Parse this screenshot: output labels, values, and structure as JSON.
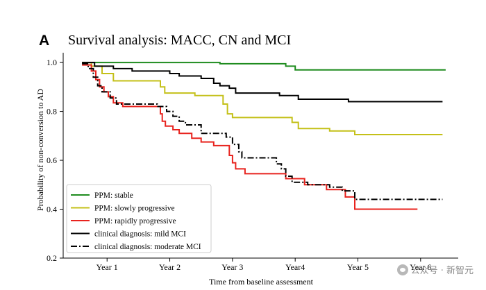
{
  "panel_label": "A",
  "watermark": "公众号 · 新智元",
  "colors": {
    "stable": "#1e8c1e",
    "slowly": "#c4c019",
    "rapidly": "#e8231e",
    "mild": "#000000",
    "moderate": "#000000"
  },
  "chart_data": {
    "type": "line",
    "title": "Survival analysis: MACC, CN and MCI",
    "xlabel": "Time from baseline assessment",
    "ylabel": "Probability of non-conversion to AD",
    "xlim": [
      0.3,
      6.6
    ],
    "ylim": [
      0.2,
      1.04
    ],
    "x_ticks": [
      1,
      2,
      3,
      4,
      5,
      6
    ],
    "x_tick_labels": [
      "Year 1",
      "Year 2",
      "Year 3",
      "Year4",
      "Year 5",
      "Year 6"
    ],
    "y_ticks": [
      0.2,
      0.4,
      0.6,
      0.8,
      1.0
    ],
    "y_tick_labels": [
      "0.2",
      "0.4",
      "0.6",
      "0.8",
      "1.0"
    ],
    "legend_position": "lower-left",
    "series": [
      {
        "name": "PPM: stable",
        "style": "solid",
        "color_key": "stable",
        "points": [
          [
            0.6,
            1.0
          ],
          [
            2.8,
            1.0
          ],
          [
            2.8,
            0.995
          ],
          [
            3.85,
            0.995
          ],
          [
            3.85,
            0.985
          ],
          [
            4.0,
            0.985
          ],
          [
            4.0,
            0.97
          ],
          [
            6.4,
            0.97
          ]
        ]
      },
      {
        "name": "PPM: slowly progressive",
        "style": "solid",
        "color_key": "slowly",
        "points": [
          [
            0.6,
            1.0
          ],
          [
            0.75,
            1.0
          ],
          [
            0.75,
            0.985
          ],
          [
            0.92,
            0.985
          ],
          [
            0.92,
            0.955
          ],
          [
            1.1,
            0.955
          ],
          [
            1.1,
            0.925
          ],
          [
            1.85,
            0.925
          ],
          [
            1.85,
            0.9
          ],
          [
            1.92,
            0.9
          ],
          [
            1.92,
            0.875
          ],
          [
            2.4,
            0.875
          ],
          [
            2.4,
            0.865
          ],
          [
            2.85,
            0.865
          ],
          [
            2.85,
            0.83
          ],
          [
            2.92,
            0.83
          ],
          [
            2.92,
            0.79
          ],
          [
            3.0,
            0.79
          ],
          [
            3.0,
            0.775
          ],
          [
            3.95,
            0.775
          ],
          [
            3.95,
            0.755
          ],
          [
            4.05,
            0.755
          ],
          [
            4.05,
            0.73
          ],
          [
            4.55,
            0.73
          ],
          [
            4.55,
            0.72
          ],
          [
            4.95,
            0.72
          ],
          [
            4.95,
            0.705
          ],
          [
            6.35,
            0.705
          ]
        ]
      },
      {
        "name": "PPM: rapidly progressive",
        "style": "solid",
        "color_key": "rapidly",
        "points": [
          [
            0.6,
            0.99
          ],
          [
            0.75,
            0.99
          ],
          [
            0.75,
            0.965
          ],
          [
            0.82,
            0.965
          ],
          [
            0.82,
            0.93
          ],
          [
            0.88,
            0.93
          ],
          [
            0.88,
            0.9
          ],
          [
            0.95,
            0.9
          ],
          [
            0.95,
            0.88
          ],
          [
            1.02,
            0.88
          ],
          [
            1.02,
            0.86
          ],
          [
            1.1,
            0.86
          ],
          [
            1.1,
            0.835
          ],
          [
            1.25,
            0.835
          ],
          [
            1.25,
            0.82
          ],
          [
            1.85,
            0.82
          ],
          [
            1.85,
            0.79
          ],
          [
            1.88,
            0.79
          ],
          [
            1.88,
            0.76
          ],
          [
            1.93,
            0.76
          ],
          [
            1.93,
            0.74
          ],
          [
            2.05,
            0.74
          ],
          [
            2.05,
            0.725
          ],
          [
            2.15,
            0.725
          ],
          [
            2.15,
            0.71
          ],
          [
            2.35,
            0.71
          ],
          [
            2.35,
            0.69
          ],
          [
            2.5,
            0.69
          ],
          [
            2.5,
            0.675
          ],
          [
            2.7,
            0.675
          ],
          [
            2.7,
            0.66
          ],
          [
            2.95,
            0.66
          ],
          [
            2.95,
            0.62
          ],
          [
            3.0,
            0.62
          ],
          [
            3.0,
            0.59
          ],
          [
            3.05,
            0.59
          ],
          [
            3.05,
            0.565
          ],
          [
            3.2,
            0.565
          ],
          [
            3.2,
            0.545
          ],
          [
            3.85,
            0.545
          ],
          [
            3.85,
            0.525
          ],
          [
            4.15,
            0.525
          ],
          [
            4.15,
            0.5
          ],
          [
            4.5,
            0.5
          ],
          [
            4.5,
            0.48
          ],
          [
            4.8,
            0.48
          ],
          [
            4.8,
            0.45
          ],
          [
            4.95,
            0.45
          ],
          [
            4.95,
            0.4
          ],
          [
            5.95,
            0.4
          ]
        ]
      },
      {
        "name": "clinical diagnosis: mild MCI",
        "style": "solid",
        "color_key": "mild",
        "points": [
          [
            0.6,
            1.0
          ],
          [
            0.8,
            1.0
          ],
          [
            0.8,
            0.985
          ],
          [
            1.1,
            0.985
          ],
          [
            1.1,
            0.975
          ],
          [
            1.4,
            0.975
          ],
          [
            1.4,
            0.965
          ],
          [
            2.0,
            0.965
          ],
          [
            2.0,
            0.955
          ],
          [
            2.15,
            0.955
          ],
          [
            2.15,
            0.945
          ],
          [
            2.5,
            0.945
          ],
          [
            2.5,
            0.935
          ],
          [
            2.7,
            0.935
          ],
          [
            2.7,
            0.915
          ],
          [
            2.8,
            0.915
          ],
          [
            2.8,
            0.905
          ],
          [
            2.95,
            0.905
          ],
          [
            2.95,
            0.895
          ],
          [
            3.05,
            0.895
          ],
          [
            3.05,
            0.875
          ],
          [
            3.75,
            0.875
          ],
          [
            3.75,
            0.865
          ],
          [
            4.05,
            0.865
          ],
          [
            4.05,
            0.85
          ],
          [
            4.85,
            0.85
          ],
          [
            4.85,
            0.84
          ],
          [
            6.35,
            0.84
          ]
        ]
      },
      {
        "name": "clinical diagnosis: moderate MCI",
        "style": "dashdot",
        "color_key": "moderate",
        "points": [
          [
            0.6,
            0.995
          ],
          [
            0.7,
            0.995
          ],
          [
            0.7,
            0.975
          ],
          [
            0.78,
            0.975
          ],
          [
            0.78,
            0.94
          ],
          [
            0.85,
            0.94
          ],
          [
            0.85,
            0.905
          ],
          [
            0.92,
            0.905
          ],
          [
            0.92,
            0.88
          ],
          [
            1.05,
            0.88
          ],
          [
            1.05,
            0.855
          ],
          [
            1.15,
            0.855
          ],
          [
            1.15,
            0.83
          ],
          [
            1.8,
            0.83
          ],
          [
            1.8,
            0.82
          ],
          [
            1.95,
            0.82
          ],
          [
            1.95,
            0.8
          ],
          [
            2.05,
            0.8
          ],
          [
            2.05,
            0.78
          ],
          [
            2.15,
            0.78
          ],
          [
            2.15,
            0.76
          ],
          [
            2.25,
            0.76
          ],
          [
            2.25,
            0.745
          ],
          [
            2.5,
            0.745
          ],
          [
            2.5,
            0.71
          ],
          [
            2.9,
            0.71
          ],
          [
            2.9,
            0.695
          ],
          [
            3.0,
            0.695
          ],
          [
            3.0,
            0.665
          ],
          [
            3.1,
            0.665
          ],
          [
            3.1,
            0.635
          ],
          [
            3.15,
            0.635
          ],
          [
            3.15,
            0.61
          ],
          [
            3.7,
            0.61
          ],
          [
            3.7,
            0.585
          ],
          [
            3.78,
            0.585
          ],
          [
            3.78,
            0.565
          ],
          [
            3.85,
            0.565
          ],
          [
            3.85,
            0.535
          ],
          [
            3.95,
            0.535
          ],
          [
            3.95,
            0.51
          ],
          [
            4.2,
            0.51
          ],
          [
            4.2,
            0.5
          ],
          [
            4.55,
            0.5
          ],
          [
            4.55,
            0.49
          ],
          [
            4.75,
            0.49
          ],
          [
            4.75,
            0.475
          ],
          [
            4.95,
            0.475
          ],
          [
            4.95,
            0.44
          ],
          [
            6.35,
            0.44
          ]
        ]
      }
    ]
  }
}
